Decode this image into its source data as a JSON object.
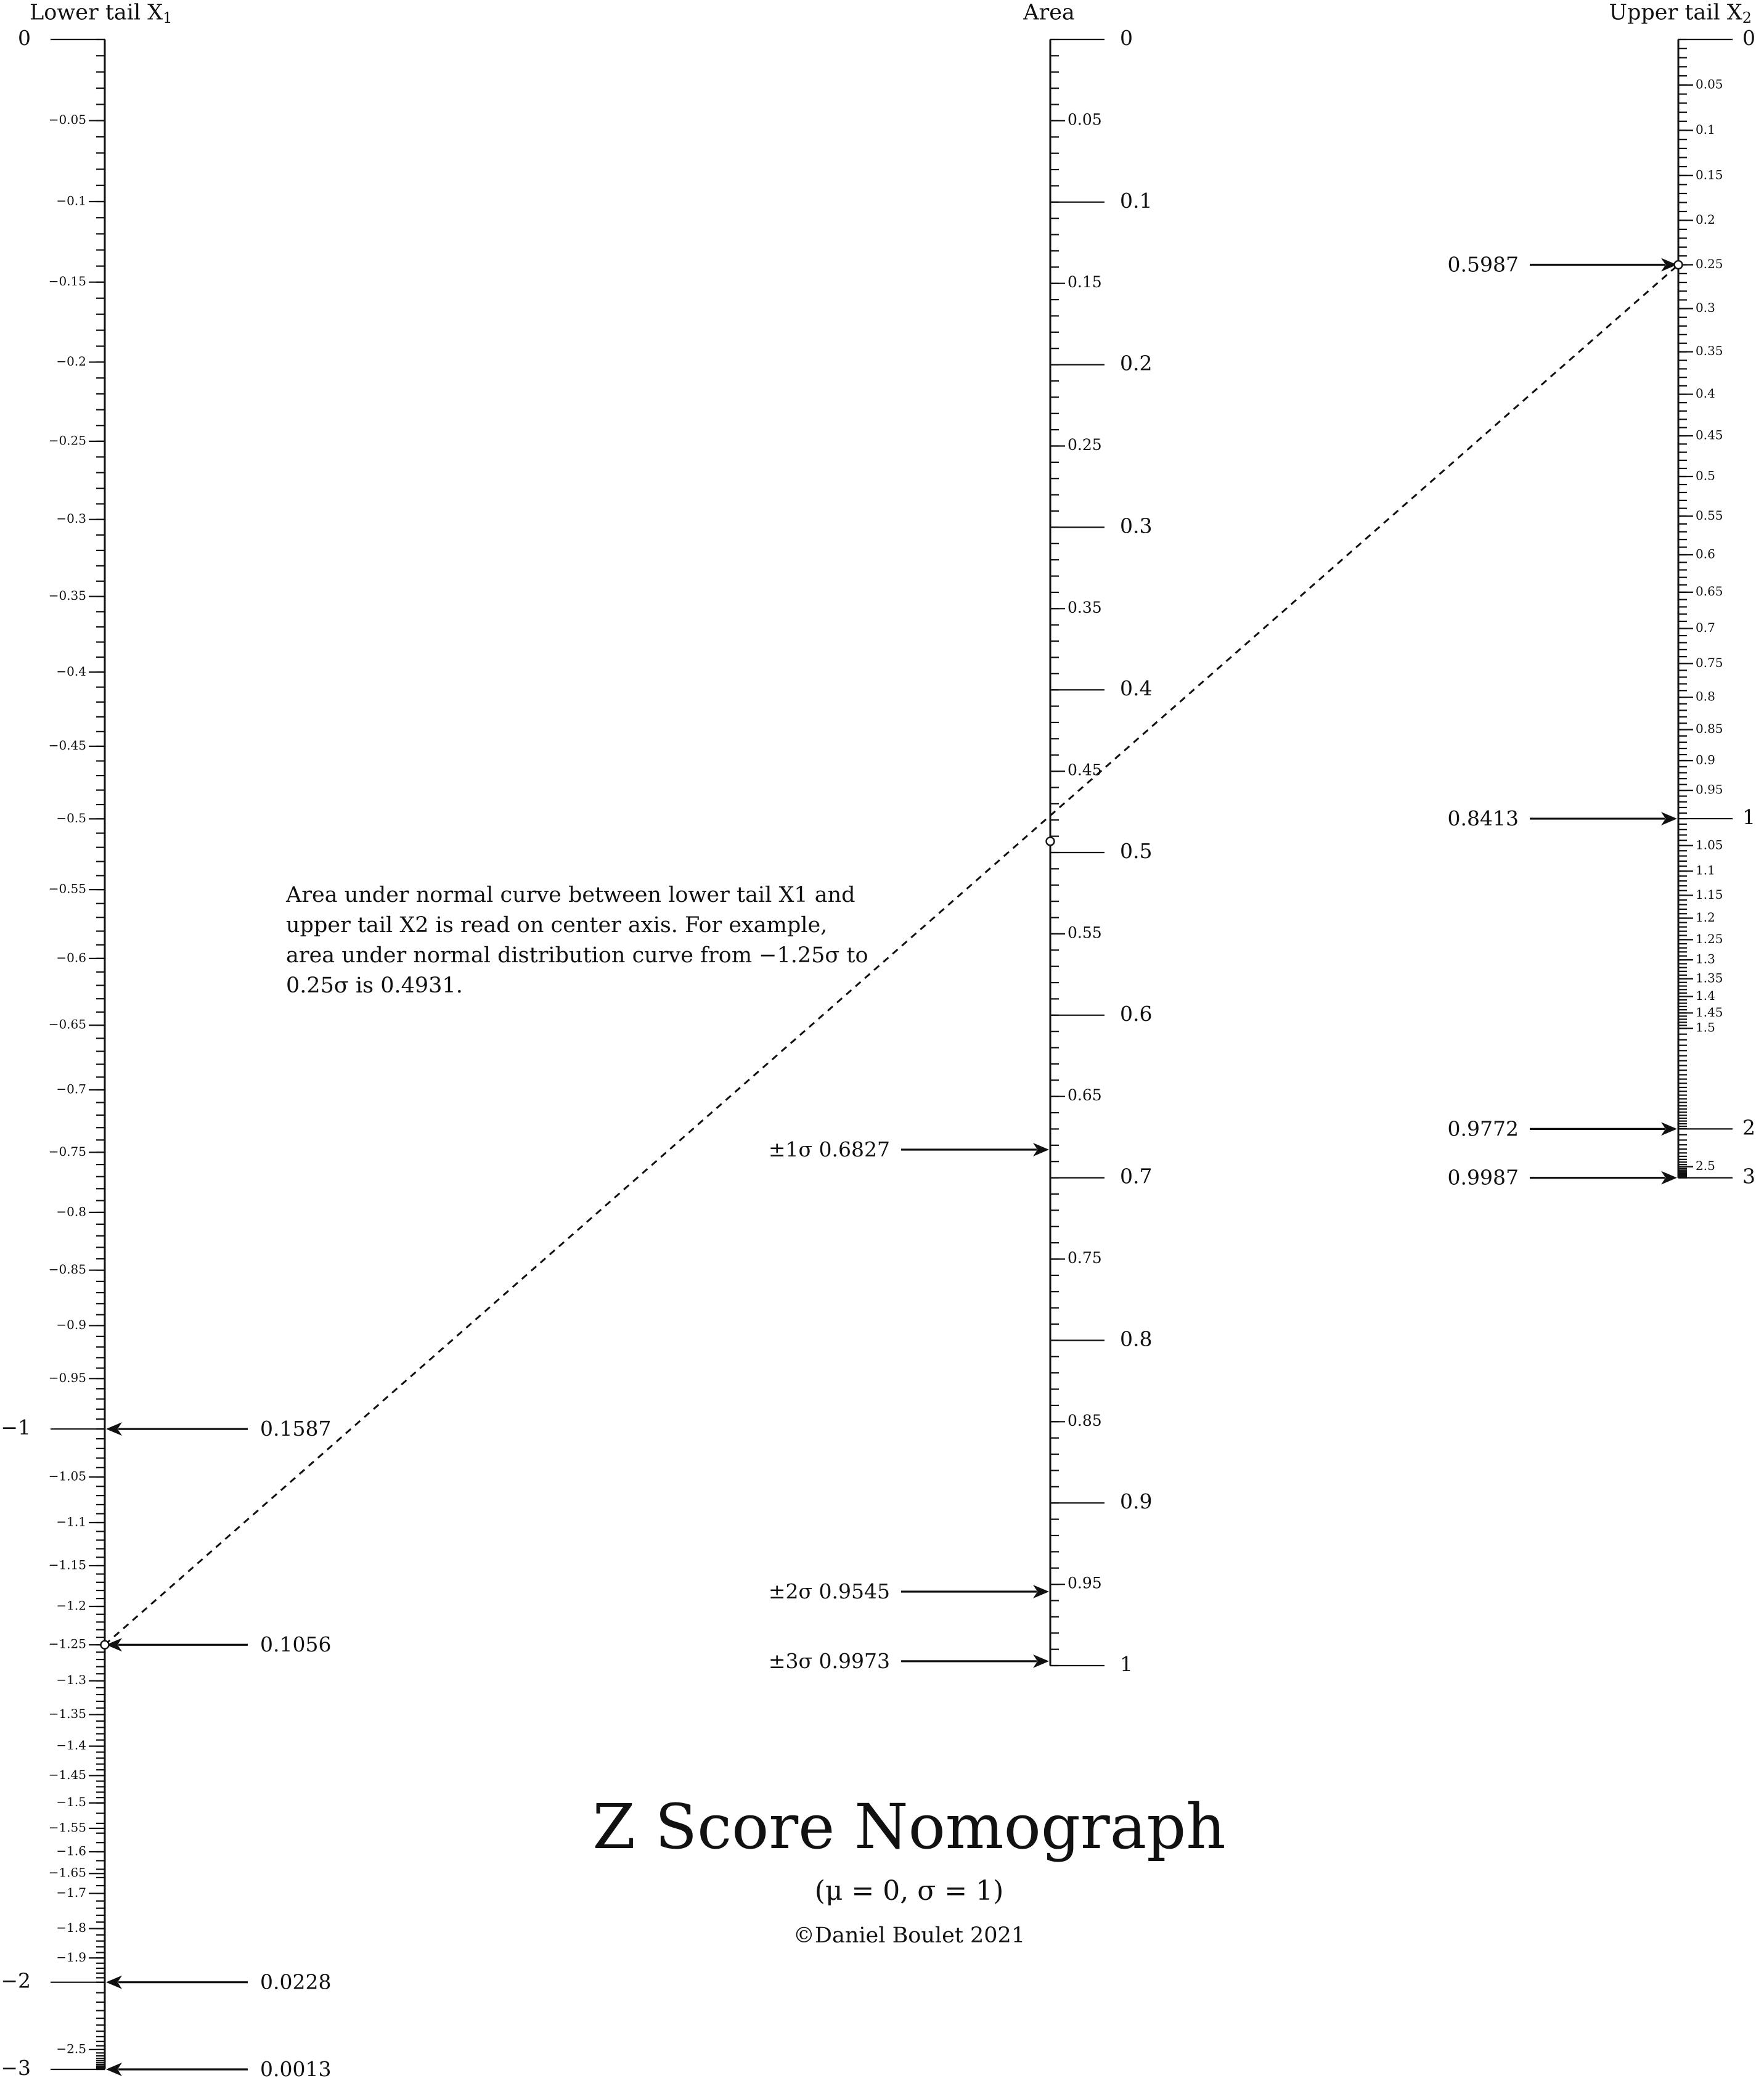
{
  "chart_data": {
    "type": "nomogram",
    "title": "Z Score Nomograph",
    "subtitle": "(μ = 0, σ = 1)",
    "copyright": "©Daniel Boulet 2021",
    "axes": {
      "lower": {
        "label": "Lower tail X",
        "label_sub": "1",
        "range": [
          0,
          -3
        ],
        "major": [
          {
            "label": "0",
            "value": 0
          },
          {
            "label": "−1",
            "value": -1
          },
          {
            "label": "−2",
            "value": -2
          },
          {
            "label": "−3",
            "value": -3
          }
        ],
        "minor_labels": [
          {
            "label": "−0.05",
            "value": -0.05
          },
          {
            "label": "−0.1",
            "value": -0.1
          },
          {
            "label": "−0.15",
            "value": -0.15
          },
          {
            "label": "−0.2",
            "value": -0.2
          },
          {
            "label": "−0.25",
            "value": -0.25
          },
          {
            "label": "−0.3",
            "value": -0.3
          },
          {
            "label": "−0.35",
            "value": -0.35
          },
          {
            "label": "−0.4",
            "value": -0.4
          },
          {
            "label": "−0.45",
            "value": -0.45
          },
          {
            "label": "−0.5",
            "value": -0.5
          },
          {
            "label": "−0.55",
            "value": -0.55
          },
          {
            "label": "−0.6",
            "value": -0.6
          },
          {
            "label": "−0.65",
            "value": -0.65
          },
          {
            "label": "−0.7",
            "value": -0.7
          },
          {
            "label": "−0.75",
            "value": -0.75
          },
          {
            "label": "−0.8",
            "value": -0.8
          },
          {
            "label": "−0.85",
            "value": -0.85
          },
          {
            "label": "−0.9",
            "value": -0.9
          },
          {
            "label": "−0.95",
            "value": -0.95
          },
          {
            "label": "−1.05",
            "value": -1.05
          },
          {
            "label": "−1.1",
            "value": -1.1
          },
          {
            "label": "−1.15",
            "value": -1.15
          },
          {
            "label": "−1.2",
            "value": -1.2
          },
          {
            "label": "−1.25",
            "value": -1.25
          },
          {
            "label": "−1.3",
            "value": -1.3
          },
          {
            "label": "−1.35",
            "value": -1.35
          },
          {
            "label": "−1.4",
            "value": -1.4
          },
          {
            "label": "−1.45",
            "value": -1.45
          },
          {
            "label": "−1.5",
            "value": -1.5
          },
          {
            "label": "−1.55",
            "value": -1.55
          },
          {
            "label": "−1.6",
            "value": -1.6
          },
          {
            "label": "−1.65",
            "value": -1.65
          },
          {
            "label": "−1.7",
            "value": -1.7
          },
          {
            "label": "−1.8",
            "value": -1.8
          },
          {
            "label": "−1.9",
            "value": -1.9
          },
          {
            "label": "−2.5",
            "value": -2.5
          }
        ],
        "markers": [
          {
            "label": "0.1587",
            "value": -1
          },
          {
            "label": "0.1056",
            "value": -1.25
          },
          {
            "label": "0.0228",
            "value": -2
          },
          {
            "label": "0.0013",
            "value": -3
          }
        ]
      },
      "center": {
        "label": "Area",
        "range": [
          0,
          1
        ],
        "major": [
          {
            "label": "0",
            "value": 0
          },
          {
            "label": "0.1",
            "value": 0.1
          },
          {
            "label": "0.2",
            "value": 0.2
          },
          {
            "label": "0.3",
            "value": 0.3
          },
          {
            "label": "0.4",
            "value": 0.4
          },
          {
            "label": "0.5",
            "value": 0.5
          },
          {
            "label": "0.6",
            "value": 0.6
          },
          {
            "label": "0.7",
            "value": 0.7
          },
          {
            "label": "0.8",
            "value": 0.8
          },
          {
            "label": "0.9",
            "value": 0.9
          },
          {
            "label": "1",
            "value": 1
          }
        ],
        "minor_labels": [
          {
            "label": "0.05",
            "value": 0.05
          },
          {
            "label": "0.15",
            "value": 0.15
          },
          {
            "label": "0.25",
            "value": 0.25
          },
          {
            "label": "0.35",
            "value": 0.35
          },
          {
            "label": "0.45",
            "value": 0.45
          },
          {
            "label": "0.55",
            "value": 0.55
          },
          {
            "label": "0.65",
            "value": 0.65
          },
          {
            "label": "0.75",
            "value": 0.75
          },
          {
            "label": "0.85",
            "value": 0.85
          },
          {
            "label": "0.95",
            "value": 0.95
          }
        ],
        "markers": [
          {
            "label": "±1σ 0.6827",
            "value": 0.6827
          },
          {
            "label": "±2σ 0.9545",
            "value": 0.9545
          },
          {
            "label": "±3σ 0.9973",
            "value": 0.9973
          }
        ]
      },
      "upper": {
        "label": "Upper tail X",
        "label_sub": "2",
        "range": [
          0,
          3
        ],
        "major": [
          {
            "label": "0",
            "value": 0
          },
          {
            "label": "1",
            "value": 1
          },
          {
            "label": "2",
            "value": 2
          },
          {
            "label": "3",
            "value": 3
          }
        ],
        "minor_labels": [
          {
            "label": "0.05",
            "value": 0.05
          },
          {
            "label": "0.1",
            "value": 0.1
          },
          {
            "label": "0.15",
            "value": 0.15
          },
          {
            "label": "0.2",
            "value": 0.2
          },
          {
            "label": "0.25",
            "value": 0.25
          },
          {
            "label": "0.3",
            "value": 0.3
          },
          {
            "label": "0.35",
            "value": 0.35
          },
          {
            "label": "0.4",
            "value": 0.4
          },
          {
            "label": "0.45",
            "value": 0.45
          },
          {
            "label": "0.5",
            "value": 0.5
          },
          {
            "label": "0.55",
            "value": 0.55
          },
          {
            "label": "0.6",
            "value": 0.6
          },
          {
            "label": "0.65",
            "value": 0.65
          },
          {
            "label": "0.7",
            "value": 0.7
          },
          {
            "label": "0.75",
            "value": 0.75
          },
          {
            "label": "0.8",
            "value": 0.8
          },
          {
            "label": "0.85",
            "value": 0.85
          },
          {
            "label": "0.9",
            "value": 0.9
          },
          {
            "label": "0.95",
            "value": 0.95
          },
          {
            "label": "1.05",
            "value": 1.05
          },
          {
            "label": "1.1",
            "value": 1.1
          },
          {
            "label": "1.15",
            "value": 1.15
          },
          {
            "label": "1.2",
            "value": 1.2
          },
          {
            "label": "1.25",
            "value": 1.25
          },
          {
            "label": "1.3",
            "value": 1.3
          },
          {
            "label": "1.35",
            "value": 1.35
          },
          {
            "label": "1.4",
            "value": 1.4
          },
          {
            "label": "1.45",
            "value": 1.45
          },
          {
            "label": "1.5",
            "value": 1.5
          },
          {
            "label": "2.5",
            "value": 2.5
          }
        ],
        "markers": [
          {
            "label": "0.5987",
            "value": 0.25
          },
          {
            "label": "0.8413",
            "value": 1
          },
          {
            "label": "0.9772",
            "value": 2
          },
          {
            "label": "0.9987",
            "value": 3
          }
        ]
      }
    },
    "example": {
      "lower": -1.25,
      "upper": 0.25,
      "area": 0.4931
    },
    "annotation": "Area under normal curve between lower tail X1 and upper tail X2 is read on center axis.  For example, area under normal distribution curve from −1.25σ to 0.25σ is 0.4931."
  }
}
